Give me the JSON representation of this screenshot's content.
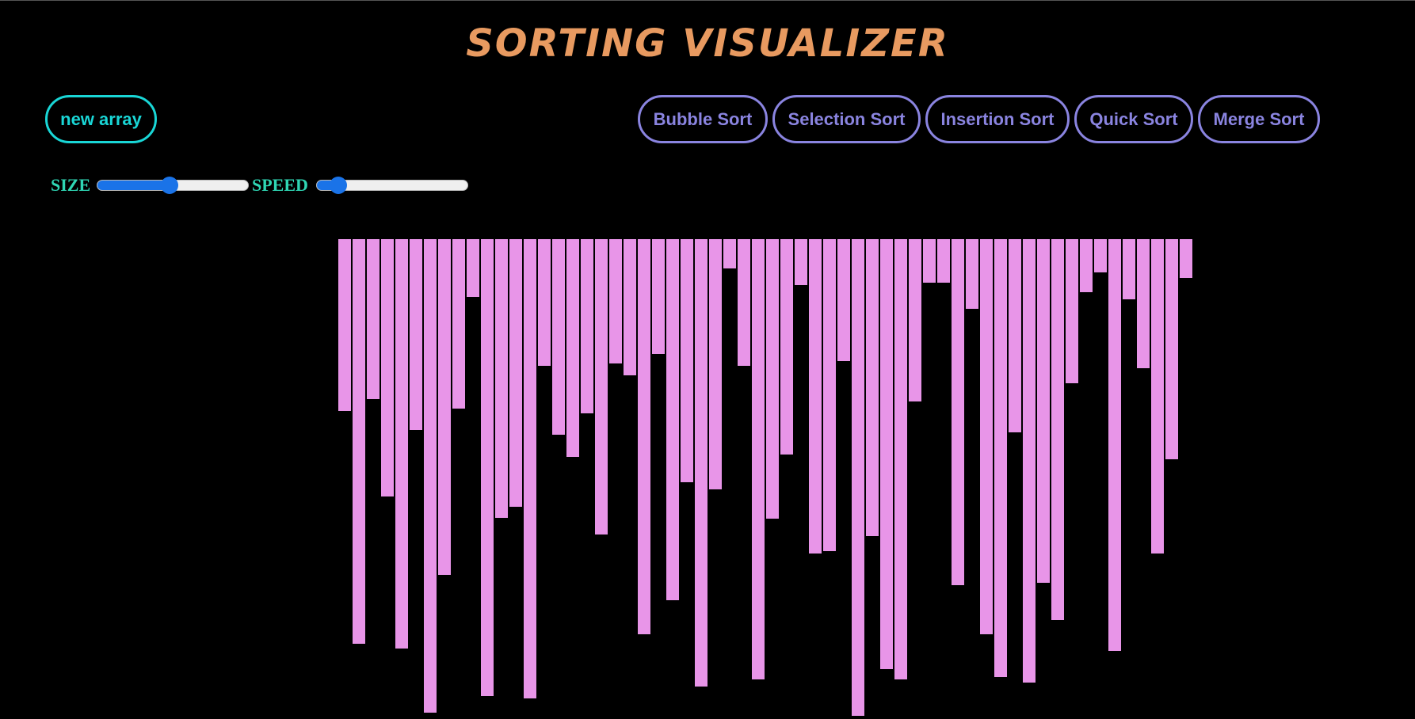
{
  "header": {
    "title": "SORTING VISUALIZER"
  },
  "controls": {
    "new_array_label": "new array",
    "size_label": "SIZE",
    "speed_label": "SPEED",
    "size_slider_value": 0.48,
    "speed_slider_value": 0.14
  },
  "algorithms": [
    {
      "label": "Bubble Sort"
    },
    {
      "label": "Selection Sort"
    },
    {
      "label": "Insertion Sort"
    },
    {
      "label": "Quick Sort"
    },
    {
      "label": "Merge Sort"
    }
  ],
  "colors": {
    "background": "#000000",
    "title": "#e89a60",
    "new_array": "#19d6d6",
    "sort_buttons": "#8a84e0",
    "slider_labels": "#2fd6b4",
    "slider_accent": "#1a73e8",
    "bars": "#e895e8"
  },
  "array": {
    "max_value": 607,
    "values": [
      217,
      511,
      202,
      325,
      517,
      241,
      598,
      424,
      214,
      73,
      577,
      352,
      338,
      580,
      160,
      247,
      275,
      220,
      373,
      157,
      172,
      499,
      145,
      456,
      307,
      565,
      316,
      37,
      160,
      556,
      353,
      272,
      58,
      397,
      394,
      154,
      602,
      375,
      543,
      556,
      205,
      55,
      55,
      437,
      88,
      499,
      553,
      244,
      560,
      434,
      481,
      182,
      67,
      42,
      520,
      76,
      163,
      397,
      278,
      49
    ]
  }
}
